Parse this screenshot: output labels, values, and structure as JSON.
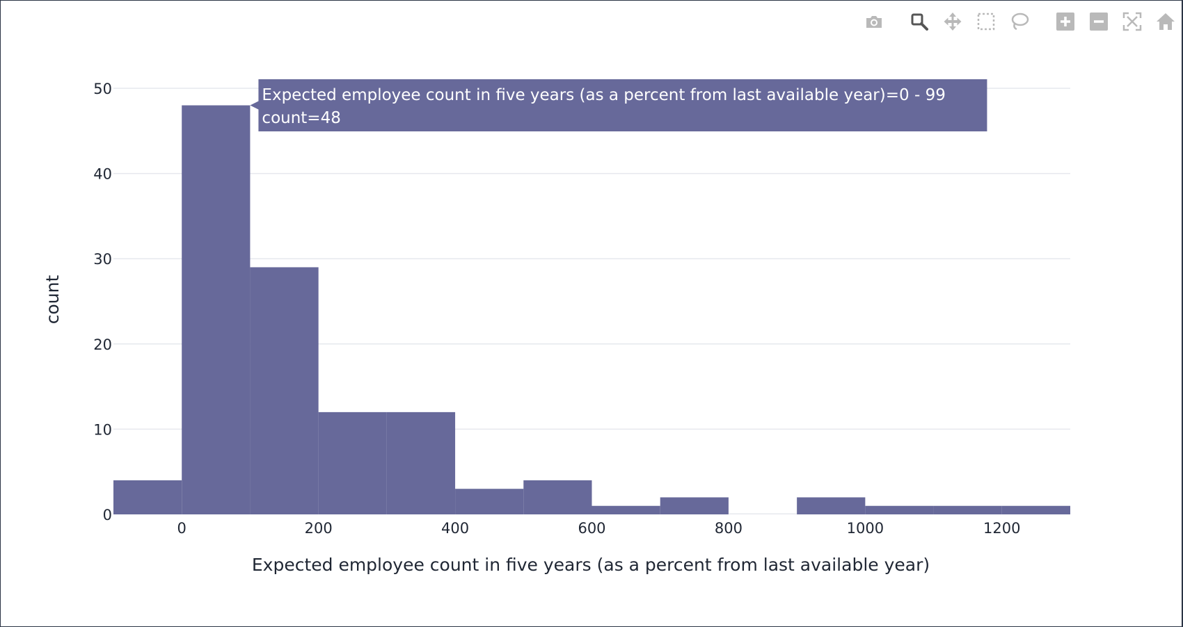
{
  "modebar": {
    "buttons": [
      {
        "name": "camera-icon",
        "title": "Download plot as a png"
      },
      {
        "name": "zoom-icon",
        "title": "Zoom",
        "active": true
      },
      {
        "name": "pan-icon",
        "title": "Pan"
      },
      {
        "name": "box-select-icon",
        "title": "Box Select"
      },
      {
        "name": "lasso-select-icon",
        "title": "Lasso Select"
      },
      {
        "name": "zoom-in-icon",
        "title": "Zoom in"
      },
      {
        "name": "zoom-out-icon",
        "title": "Zoom out"
      },
      {
        "name": "autoscale-icon",
        "title": "Autoscale"
      },
      {
        "name": "reset-axes-icon",
        "title": "Reset axes"
      }
    ],
    "icon_color": "#b9b9b9",
    "active_color": "#555555"
  },
  "chart_data": {
    "type": "bar",
    "subtype": "histogram",
    "bar_color": "#67699a",
    "xlabel": "Expected employee count in five years (as a percent from last available year)",
    "ylabel": "count",
    "xlim": [
      -100,
      1300
    ],
    "ylim": [
      0,
      50
    ],
    "x_ticks": [
      0,
      200,
      400,
      600,
      800,
      1000,
      1200
    ],
    "x_tick_labels": [
      "0",
      "200",
      "400",
      "600",
      "800",
      "1000",
      "1200"
    ],
    "y_ticks": [
      0,
      10,
      20,
      30,
      40,
      50
    ],
    "y_tick_labels": [
      "0",
      "10",
      "20",
      "30",
      "40",
      "50"
    ],
    "grid": true,
    "bin_width": 100,
    "bins": [
      {
        "start": -100,
        "end": 0,
        "count": 4
      },
      {
        "start": 0,
        "end": 100,
        "count": 48
      },
      {
        "start": 100,
        "end": 200,
        "count": 29
      },
      {
        "start": 200,
        "end": 300,
        "count": 12
      },
      {
        "start": 300,
        "end": 400,
        "count": 12
      },
      {
        "start": 400,
        "end": 500,
        "count": 3
      },
      {
        "start": 500,
        "end": 600,
        "count": 4
      },
      {
        "start": 600,
        "end": 700,
        "count": 1
      },
      {
        "start": 700,
        "end": 800,
        "count": 2
      },
      {
        "start": 800,
        "end": 900,
        "count": 0
      },
      {
        "start": 900,
        "end": 1000,
        "count": 2
      },
      {
        "start": 1000,
        "end": 1100,
        "count": 1
      },
      {
        "start": 1100,
        "end": 1200,
        "count": 1
      },
      {
        "start": 1200,
        "end": 1300,
        "count": 1
      }
    ],
    "hover": {
      "line1": "Expected employee count in five years (as a percent from last available year)=0 - 99",
      "line2": "count=48",
      "bin_index": 1
    }
  }
}
